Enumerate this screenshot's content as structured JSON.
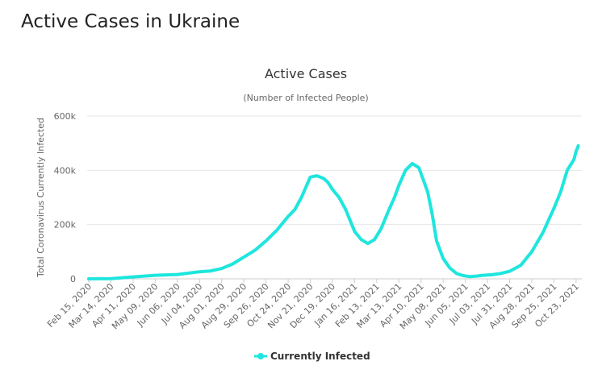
{
  "page": {
    "title": "Active Cases in Ukraine"
  },
  "chart_data": {
    "type": "line",
    "title": "Active Cases",
    "subtitle": "(Number of Infected People)",
    "xlabel": "",
    "ylabel": "Total Coronavirus Currently Infected",
    "ylim": [
      0,
      600000
    ],
    "y_ticks": [
      0,
      200000,
      400000,
      600000
    ],
    "y_tick_labels": [
      "0",
      "200k",
      "400k",
      "600k"
    ],
    "x_tick_labels": [
      "Feb 15, 2020",
      "Mar 14, 2020",
      "Apr 11, 2020",
      "May 09, 2020",
      "Jun 06, 2020",
      "Jul 04, 2020",
      "Aug 01, 2020",
      "Aug 29, 2020",
      "Sep 26, 2020",
      "Oct 24, 2020",
      "Nov 21, 2020",
      "Dec 19, 2020",
      "Jan 16, 2021",
      "Feb 13, 2021",
      "Mar 13, 2021",
      "Apr 10, 2021",
      "May 08, 2021",
      "Jun 05, 2021",
      "Jul 03, 2021",
      "Jul 31, 2021",
      "Aug 28, 2021",
      "Sep 25, 2021",
      "Oct 23, 2021"
    ],
    "legend": {
      "position": "bottom-center"
    },
    "series": [
      {
        "name": "Currently Infected",
        "color": "#1ee6de",
        "x_index": [
          0,
          1,
          2,
          3,
          4,
          5,
          5.5,
          6,
          6.5,
          7,
          7.5,
          8,
          8.5,
          9,
          9.3,
          9.6,
          10,
          10.3,
          10.6,
          10.8,
          11,
          11.3,
          11.6,
          12,
          12.3,
          12.6,
          12.9,
          13.2,
          13.5,
          13.8,
          14,
          14.3,
          14.6,
          14.9,
          15.1,
          15.3,
          15.5,
          15.7,
          16,
          16.3,
          16.6,
          16.9,
          17.2,
          17.5,
          17.8,
          18.2,
          18.6,
          19,
          19.5,
          20,
          20.5,
          21,
          21.3,
          21.6,
          21.9,
          22,
          22.1
        ],
        "values": [
          0,
          1000,
          7000,
          13000,
          16000,
          26000,
          29000,
          38000,
          55000,
          80000,
          105000,
          140000,
          180000,
          230000,
          255000,
          300000,
          375000,
          380000,
          370000,
          355000,
          330000,
          300000,
          255000,
          175000,
          145000,
          130000,
          145000,
          185000,
          245000,
          300000,
          345000,
          400000,
          425000,
          410000,
          365000,
          320000,
          240000,
          140000,
          75000,
          40000,
          20000,
          12000,
          8000,
          10000,
          13000,
          15000,
          20000,
          28000,
          50000,
          100000,
          170000,
          260000,
          320000,
          400000,
          440000,
          470000,
          490000
        ]
      }
    ]
  }
}
